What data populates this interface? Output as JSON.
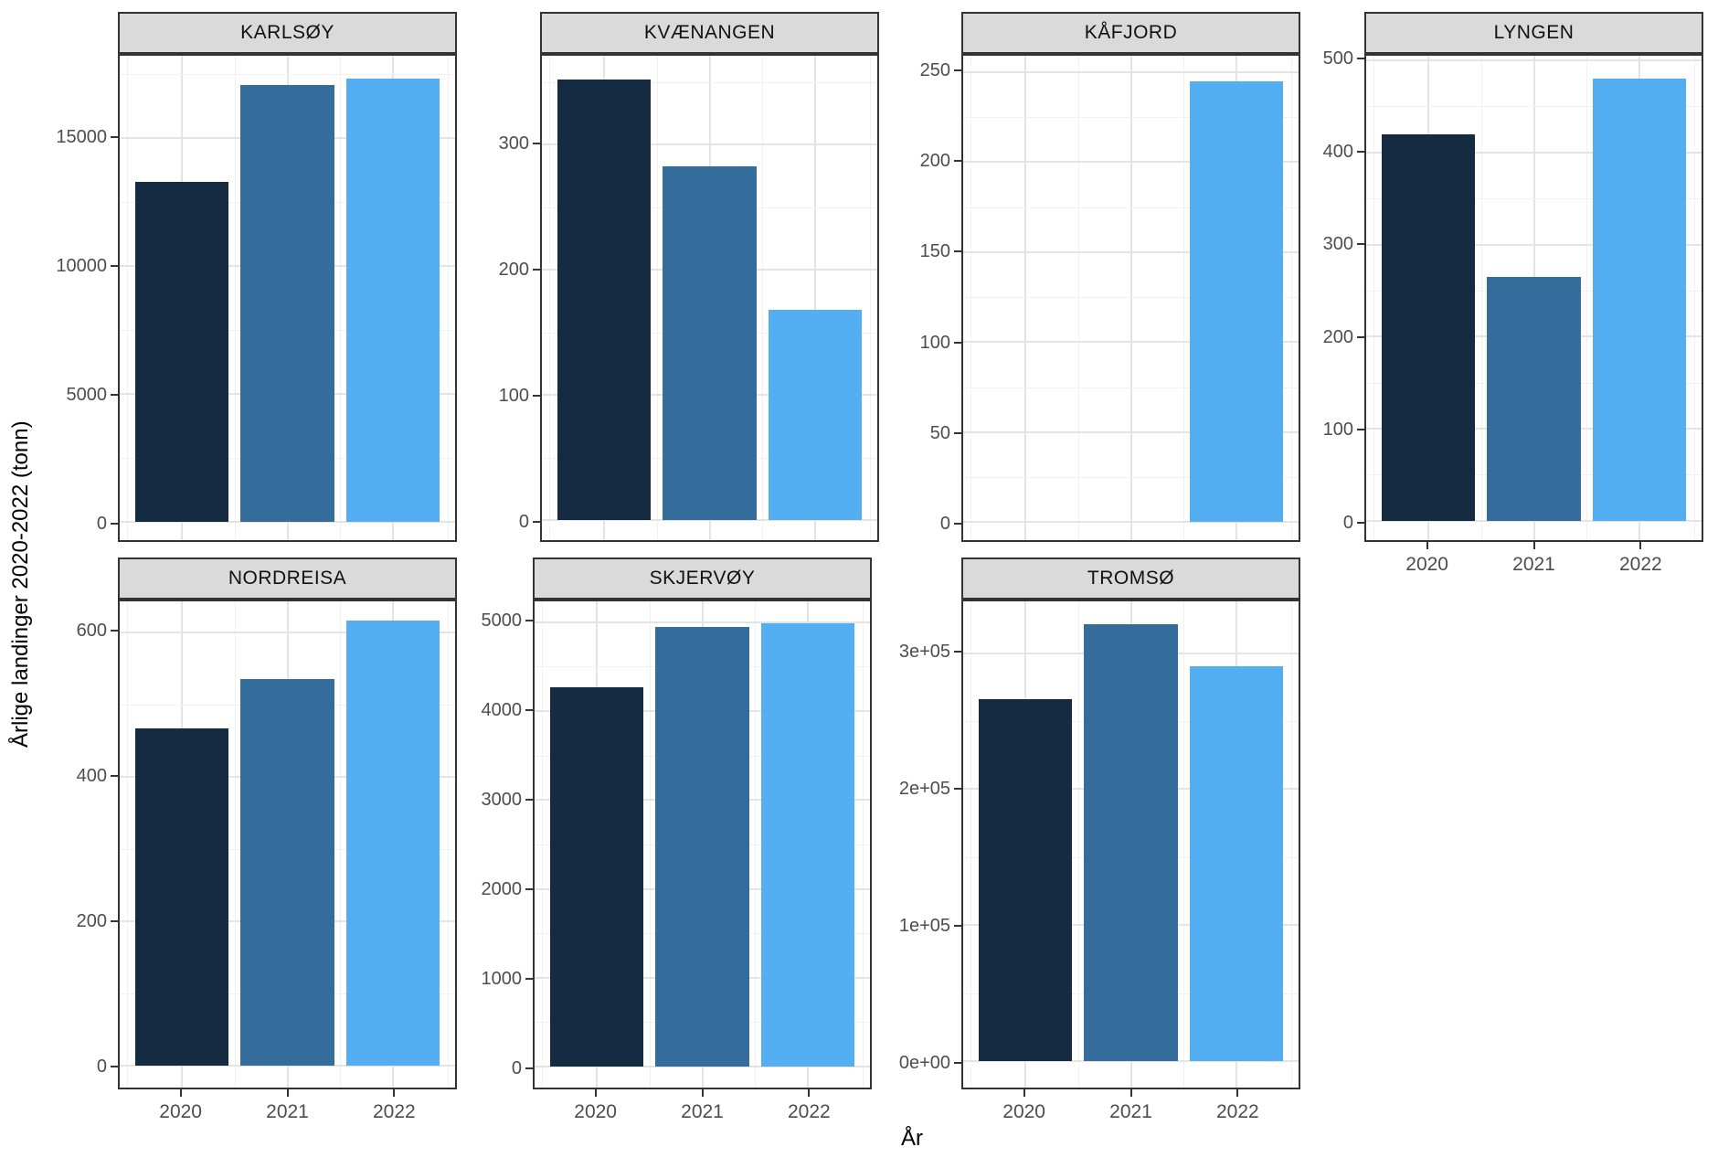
{
  "figure": {
    "y_axis_title": "Årlige landinger 2020-2022 (tonn)",
    "x_axis_title": "År",
    "years": [
      "2020",
      "2021",
      "2022"
    ],
    "palette": {
      "2020": "#152B42",
      "2021": "#346C9B",
      "2022": "#54AEF2"
    },
    "strip_background": "#DADADA",
    "panel_border": "#333333",
    "grid_major": "#E4E4E4",
    "grid_minor": "#F1F1F1",
    "tick_text_color": "#4D4D4D"
  },
  "chart_data": [
    {
      "type": "bar",
      "title": "KARLSØY",
      "categories": [
        "2020",
        "2021",
        "2022"
      ],
      "values": [
        13300,
        17100,
        17340
      ],
      "ytick_values": [
        0,
        5000,
        10000,
        15000
      ],
      "ytick_labels": [
        "0",
        "5000",
        "10000",
        "15000"
      ],
      "ylim": [
        -710,
        18230
      ],
      "x_axis": false
    },
    {
      "type": "bar",
      "title": "KVÆNANGEN",
      "categories": [
        "2020",
        "2021",
        "2022"
      ],
      "values": [
        352,
        283,
        168
      ],
      "ytick_values": [
        0,
        100,
        200,
        300
      ],
      "ytick_labels": [
        "0",
        "100",
        "200",
        "300"
      ],
      "ylim": [
        -16,
        371
      ],
      "x_axis": false
    },
    {
      "type": "bar",
      "title": "KÅFJORD",
      "categories": [
        "2020",
        "2021",
        "2022"
      ],
      "values": [
        null,
        null,
        245
      ],
      "ytick_values": [
        0,
        50,
        100,
        150,
        200,
        250
      ],
      "ytick_labels": [
        "0",
        "50",
        "100",
        "150",
        "200",
        "250"
      ],
      "ylim": [
        -10,
        259
      ],
      "x_axis": false
    },
    {
      "type": "bar",
      "title": "LYNGEN",
      "categories": [
        "2020",
        "2021",
        "2022"
      ],
      "values": [
        420,
        265,
        480
      ],
      "ytick_values": [
        0,
        100,
        200,
        300,
        400,
        500
      ],
      "ytick_labels": [
        "0",
        "100",
        "200",
        "300",
        "400",
        "500"
      ],
      "ylim": [
        -21,
        505
      ],
      "x_axis": true
    },
    {
      "type": "bar",
      "title": "NORDREISA",
      "categories": [
        "2020",
        "2021",
        "2022"
      ],
      "values": [
        467,
        535,
        617
      ],
      "ytick_values": [
        0,
        200,
        400,
        600
      ],
      "ytick_labels": [
        "0",
        "200",
        "400",
        "600"
      ],
      "ylim": [
        -31,
        643
      ],
      "x_axis": true
    },
    {
      "type": "bar",
      "title": "SKJERVØY",
      "categories": [
        "2020",
        "2021",
        "2022"
      ],
      "values": [
        4270,
        4950,
        4990
      ],
      "ytick_values": [
        0,
        1000,
        2000,
        3000,
        4000,
        5000
      ],
      "ytick_labels": [
        "0",
        "1000",
        "2000",
        "3000",
        "4000",
        "5000"
      ],
      "ylim": [
        -235,
        5233
      ],
      "x_axis": true
    },
    {
      "type": "bar",
      "title": "TROMSØ",
      "categories": [
        "2020",
        "2021",
        "2022"
      ],
      "values": [
        266000,
        321000,
        290000
      ],
      "ytick_values": [
        0,
        100000,
        200000,
        300000
      ],
      "ytick_labels": [
        "0e+00",
        "1e+05",
        "2e+05",
        "3e+05"
      ],
      "ylim": [
        -19300,
        338000
      ],
      "x_axis": true
    }
  ]
}
